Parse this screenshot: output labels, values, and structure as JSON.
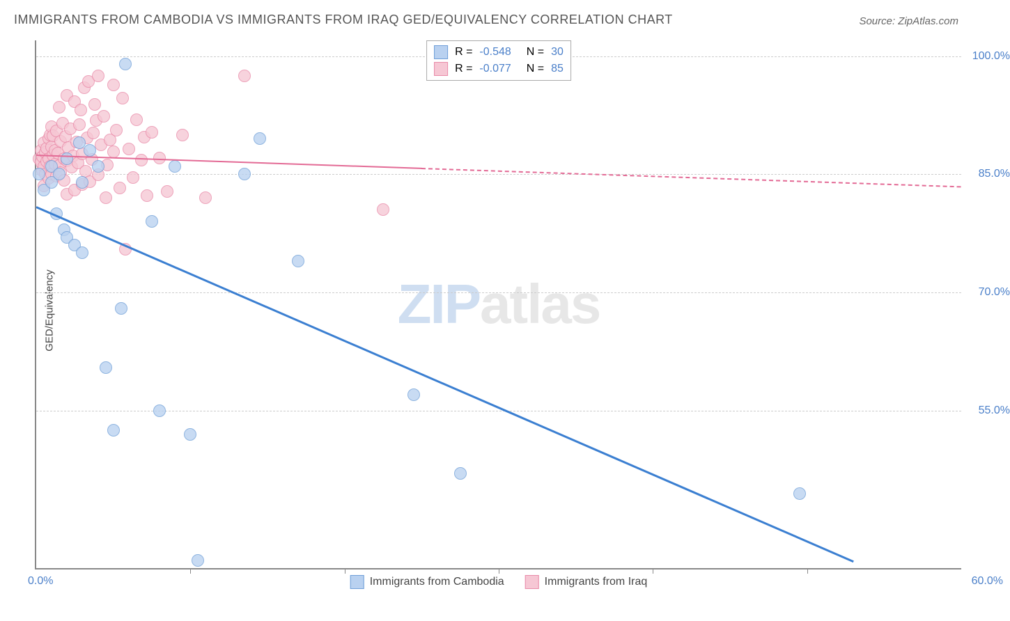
{
  "title": "IMMIGRANTS FROM CAMBODIA VS IMMIGRANTS FROM IRAQ GED/EQUIVALENCY CORRELATION CHART",
  "source": "Source: ZipAtlas.com",
  "ylabel": "GED/Equivalency",
  "watermark_zip": "ZIP",
  "watermark_atlas": "atlas",
  "chart": {
    "type": "scatter",
    "xlim": [
      0,
      60
    ],
    "ylim": [
      35,
      102
    ],
    "xticks_minor": [
      10,
      20,
      30,
      40,
      50
    ],
    "xticks_labels": {
      "start": "0.0%",
      "end": "60.0%"
    },
    "yticks": [
      {
        "v": 100,
        "label": "100.0%"
      },
      {
        "v": 85,
        "label": "85.0%"
      },
      {
        "v": 70,
        "label": "70.0%"
      },
      {
        "v": 55,
        "label": "55.0%"
      }
    ],
    "grid_color": "#d0d0d0",
    "background": "#ffffff",
    "series": {
      "cambodia": {
        "label": "Immigrants from Cambodia",
        "R": "-0.548",
        "N": "30",
        "fill": "#b9d1f0",
        "stroke": "#6f9fd8",
        "marker_r": 9,
        "trend": {
          "x0": 0,
          "y0": 81,
          "x1": 53,
          "y1": 36,
          "solid_until": 53,
          "color": "#3b7fd1",
          "width": 3
        },
        "points": [
          [
            0.2,
            85
          ],
          [
            0.5,
            83
          ],
          [
            1,
            84
          ],
          [
            1,
            86
          ],
          [
            1.3,
            80
          ],
          [
            1.5,
            85
          ],
          [
            1.8,
            78
          ],
          [
            2,
            77
          ],
          [
            2,
            87
          ],
          [
            2.5,
            76
          ],
          [
            2.8,
            89
          ],
          [
            3,
            84
          ],
          [
            3,
            75
          ],
          [
            3.5,
            88
          ],
          [
            4,
            86
          ],
          [
            4.5,
            60.5
          ],
          [
            5,
            52.5
          ],
          [
            5.5,
            68
          ],
          [
            5.8,
            99
          ],
          [
            7.5,
            79
          ],
          [
            8,
            55
          ],
          [
            9,
            86
          ],
          [
            10,
            52
          ],
          [
            10.5,
            36
          ],
          [
            13.5,
            85
          ],
          [
            14.5,
            89.5
          ],
          [
            17,
            74
          ],
          [
            24.5,
            57
          ],
          [
            27.5,
            47
          ],
          [
            49.5,
            44.5
          ]
        ]
      },
      "iraq": {
        "label": "Immigrants from Iraq",
        "R": "-0.077",
        "N": "85",
        "fill": "#f6c7d4",
        "stroke": "#e98aa8",
        "marker_r": 9,
        "trend": {
          "x0": 0,
          "y0": 87.5,
          "x1": 60,
          "y1": 83.5,
          "solid_until": 25,
          "color": "#e36a95",
          "width": 2
        },
        "points": [
          [
            0.2,
            87
          ],
          [
            0.3,
            86.5
          ],
          [
            0.3,
            88
          ],
          [
            0.4,
            85.5
          ],
          [
            0.4,
            87.2
          ],
          [
            0.5,
            89
          ],
          [
            0.5,
            86
          ],
          [
            0.5,
            83.5
          ],
          [
            0.6,
            87.8
          ],
          [
            0.6,
            85
          ],
          [
            0.7,
            88.3
          ],
          [
            0.7,
            86.6
          ],
          [
            0.8,
            89.5
          ],
          [
            0.8,
            84.5
          ],
          [
            0.8,
            87
          ],
          [
            0.9,
            90
          ],
          [
            0.9,
            86
          ],
          [
            1,
            88.5
          ],
          [
            1,
            91
          ],
          [
            1,
            85
          ],
          [
            1.1,
            87.4
          ],
          [
            1.1,
            89.9
          ],
          [
            1.2,
            86.3
          ],
          [
            1.2,
            88
          ],
          [
            1.3,
            90.5
          ],
          [
            1.3,
            84.8
          ],
          [
            1.4,
            87.7
          ],
          [
            1.5,
            93.5
          ],
          [
            1.5,
            86.1
          ],
          [
            1.6,
            89.2
          ],
          [
            1.6,
            85.2
          ],
          [
            1.7,
            91.5
          ],
          [
            1.8,
            87
          ],
          [
            1.8,
            84.2
          ],
          [
            1.9,
            89.8
          ],
          [
            2,
            95
          ],
          [
            2,
            86.7
          ],
          [
            2,
            82.5
          ],
          [
            2.1,
            88.4
          ],
          [
            2.2,
            90.8
          ],
          [
            2.3,
            85.9
          ],
          [
            2.4,
            87.3
          ],
          [
            2.5,
            94.2
          ],
          [
            2.5,
            83
          ],
          [
            2.6,
            89.1
          ],
          [
            2.7,
            86.4
          ],
          [
            2.8,
            91.3
          ],
          [
            2.9,
            93.2
          ],
          [
            3,
            87.6
          ],
          [
            3,
            83.7
          ],
          [
            3.1,
            96
          ],
          [
            3.2,
            85.4
          ],
          [
            3.3,
            89.6
          ],
          [
            3.4,
            96.8
          ],
          [
            3.5,
            84.1
          ],
          [
            3.6,
            86.9
          ],
          [
            3.7,
            90.2
          ],
          [
            3.8,
            93.9
          ],
          [
            3.9,
            91.8
          ],
          [
            4,
            84.9
          ],
          [
            4,
            97.5
          ],
          [
            4.2,
            88.7
          ],
          [
            4.4,
            92.4
          ],
          [
            4.5,
            82
          ],
          [
            4.6,
            86.2
          ],
          [
            4.8,
            89.4
          ],
          [
            5,
            87.9
          ],
          [
            5,
            96.3
          ],
          [
            5.2,
            90.6
          ],
          [
            5.4,
            83.3
          ],
          [
            5.6,
            94.7
          ],
          [
            5.8,
            75.5
          ],
          [
            6,
            88.2
          ],
          [
            6.3,
            84.6
          ],
          [
            6.5,
            91.9
          ],
          [
            6.8,
            86.8
          ],
          [
            7,
            89.7
          ],
          [
            7.2,
            82.3
          ],
          [
            7.5,
            90.3
          ],
          [
            8,
            87.1
          ],
          [
            8.5,
            82.8
          ],
          [
            9.5,
            90
          ],
          [
            11,
            82
          ],
          [
            13.5,
            97.5
          ],
          [
            22.5,
            80.5
          ]
        ]
      }
    },
    "legend_top_labels": {
      "R": "R =",
      "N": "N ="
    },
    "legend_text_color": "#444",
    "legend_value_color": "#4a7fc9"
  }
}
